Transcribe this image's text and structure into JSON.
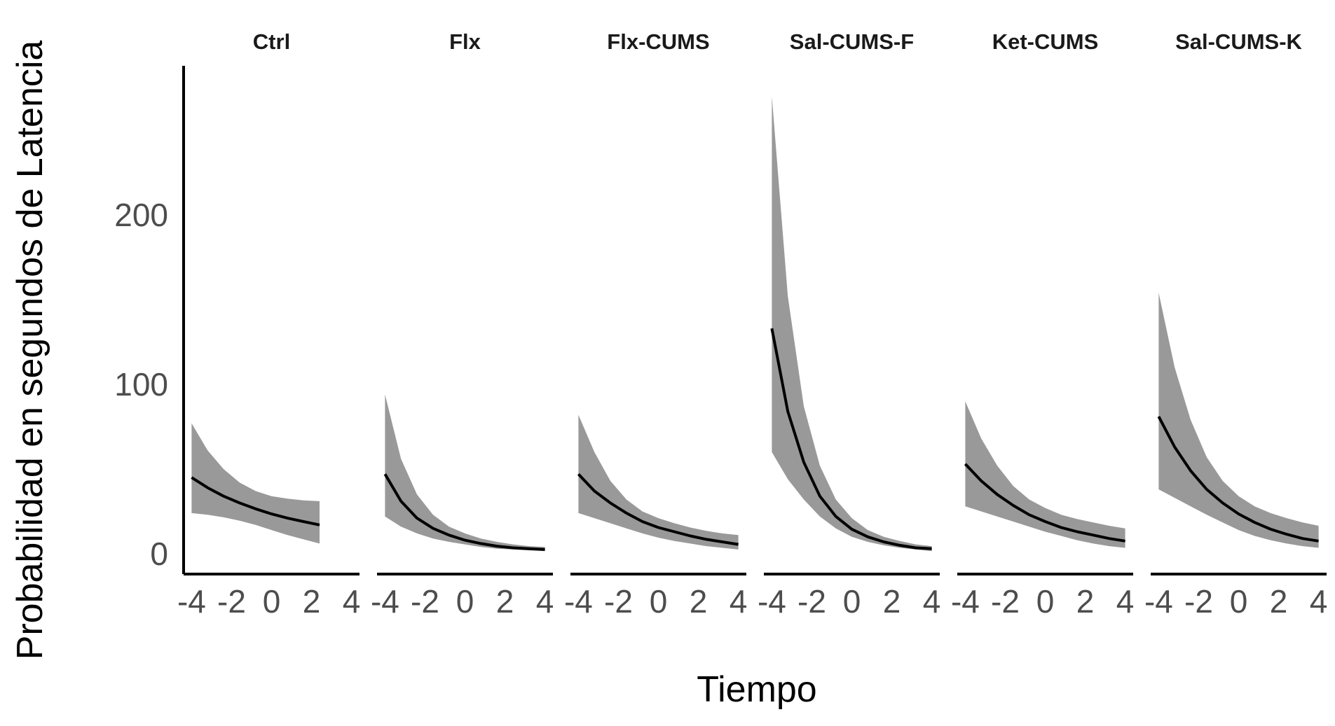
{
  "chart_data": {
    "type": "line",
    "subtype": "faceted-line-with-confidence-ribbon",
    "xlabel": "Tiempo",
    "ylabel": "Probabilidad en segundos de Latencia",
    "x_ticks": [
      -4,
      -2,
      0,
      2,
      4
    ],
    "x_tick_labels": [
      "-4",
      "-2",
      "0",
      "2",
      "4"
    ],
    "y_ticks": [
      0,
      100,
      200
    ],
    "y_tick_labels": [
      "0",
      "100",
      "200"
    ],
    "xlim": [
      -4.4,
      4.4
    ],
    "ylim": [
      -12,
      288
    ],
    "grid": false,
    "colors": {
      "line": "#000000",
      "ribbon": "#999999",
      "axis": "#000000",
      "tick_text": "#4d4d4d"
    },
    "facets": [
      {
        "name": "Ctrl",
        "x": [
          -4,
          -3.2,
          -2.4,
          -1.6,
          -0.8,
          0,
          0.8,
          1.6,
          2.4
        ],
        "y": [
          45,
          39,
          34,
          30,
          26.5,
          23.5,
          21,
          19,
          17
        ],
        "lower": [
          24,
          23,
          21.5,
          19.5,
          17,
          14,
          11,
          8.5,
          6
        ],
        "upper": [
          77,
          61,
          50,
          42,
          37,
          34,
          32.5,
          31.5,
          31
        ]
      },
      {
        "name": "Flx",
        "x": [
          -4,
          -3.2,
          -2.4,
          -1.6,
          -0.8,
          0,
          0.8,
          1.6,
          2.4,
          3.2,
          4
        ],
        "y": [
          47,
          31,
          21,
          15,
          11,
          8,
          6,
          4.5,
          3.5,
          3,
          2.5
        ],
        "lower": [
          22,
          16,
          12,
          9,
          7,
          5.5,
          4,
          3,
          2.5,
          2,
          1.5
        ],
        "upper": [
          94,
          56,
          35,
          23,
          16,
          12,
          9,
          7,
          5.5,
          4.5,
          4
        ]
      },
      {
        "name": "Flx-CUMS",
        "x": [
          -4,
          -3.2,
          -2.4,
          -1.6,
          -0.8,
          0,
          0.8,
          1.6,
          2.4,
          3.2,
          4
        ],
        "y": [
          47,
          37,
          30,
          24,
          19,
          15.5,
          13,
          10.5,
          8.5,
          7,
          5.5
        ],
        "lower": [
          24,
          21,
          18,
          15,
          12,
          9.5,
          7.5,
          6,
          4.5,
          3.5,
          2.5
        ],
        "upper": [
          82,
          60,
          43,
          32,
          25,
          21,
          18,
          15.5,
          13.5,
          12,
          11
        ]
      },
      {
        "name": "Sal-CUMS-F",
        "x": [
          -4,
          -3.2,
          -2.4,
          -1.6,
          -0.8,
          0,
          0.8,
          1.6,
          2.4,
          3.2,
          4
        ],
        "y": [
          133,
          84,
          54,
          34,
          22,
          14.5,
          10,
          7,
          5,
          3.5,
          3
        ],
        "lower": [
          60,
          44,
          32,
          22,
          15,
          10,
          7,
          5,
          3.5,
          2.5,
          1.5
        ],
        "upper": [
          270,
          152,
          87,
          52,
          32,
          21,
          14,
          10,
          7.5,
          5.5,
          4.5
        ]
      },
      {
        "name": "Ket-CUMS",
        "x": [
          -4,
          -3.2,
          -2.4,
          -1.6,
          -0.8,
          0,
          0.8,
          1.6,
          2.4,
          3.2,
          4
        ],
        "y": [
          53,
          43,
          35,
          28.5,
          23,
          19,
          15.5,
          13,
          11,
          9,
          7.5
        ],
        "lower": [
          28,
          25,
          22,
          19,
          16,
          13,
          10.5,
          8,
          6,
          4.5,
          3.5
        ],
        "upper": [
          90,
          68,
          52,
          40,
          32,
          27,
          23,
          20.5,
          18.5,
          16.5,
          15
        ]
      },
      {
        "name": "Sal-CUMS-K",
        "x": [
          -4,
          -3.2,
          -2.4,
          -1.6,
          -0.8,
          0,
          0.8,
          1.6,
          2.4,
          3.2,
          4
        ],
        "y": [
          81,
          63,
          49,
          38,
          30,
          23.5,
          18.5,
          14.5,
          11.5,
          9,
          7.5
        ],
        "lower": [
          38,
          33,
          28,
          23,
          18.5,
          14,
          10.5,
          8,
          6,
          4.5,
          3.5
        ],
        "upper": [
          154,
          110,
          79,
          57,
          43,
          34,
          28,
          24,
          21,
          18.5,
          16.5
        ]
      }
    ]
  }
}
